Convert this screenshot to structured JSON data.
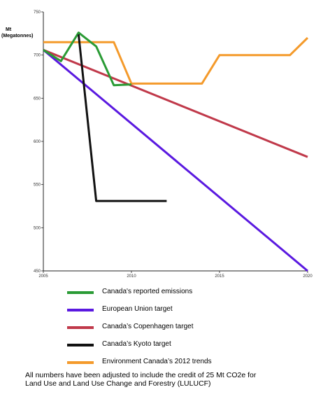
{
  "chart_data": {
    "type": "line",
    "ylabel": [
      "Mt",
      "(Megatonnes)"
    ],
    "xlim": [
      2005,
      2020
    ],
    "ylim": [
      450,
      750
    ],
    "xticks": [
      2005,
      2010,
      2015,
      2020
    ],
    "yticks": [
      450,
      500,
      550,
      600,
      650,
      700,
      750
    ],
    "grid": false,
    "legend_position": "bottom",
    "series": [
      {
        "name": "Canada's reported emissions",
        "color": "#2a9b35",
        "x": [
          2005,
          2006,
          2007,
          2008,
          2009,
          2010
        ],
        "y": [
          706,
          693,
          726,
          710,
          665,
          666
        ]
      },
      {
        "name": "European Union target",
        "color": "#5a19e0",
        "x": [
          2005,
          2020
        ],
        "y": [
          706,
          450
        ]
      },
      {
        "name": "Canada’s Copenhagen target",
        "color": "#c0394a",
        "x": [
          2005,
          2020
        ],
        "y": [
          706,
          582
        ]
      },
      {
        "name": "Canada’s Kyoto target",
        "color": "#111111",
        "x": [
          2007,
          2008,
          2012
        ],
        "y": [
          724,
          531,
          531
        ]
      },
      {
        "name": "Environment Canada’s 2012 trends",
        "color": "#f49a2b",
        "x": [
          2005,
          2009,
          2010,
          2014,
          2015,
          2019,
          2020
        ],
        "y": [
          715,
          715,
          667,
          667,
          700,
          700,
          720
        ]
      }
    ]
  },
  "legend_order": [
    0,
    1,
    2,
    3,
    4
  ],
  "note": {
    "line1": "All numbers have been adjusted to include the credit of 25 Mt CO2e for",
    "line2": "Land Use and Land Use Change and Forestry (LULUCF)"
  }
}
